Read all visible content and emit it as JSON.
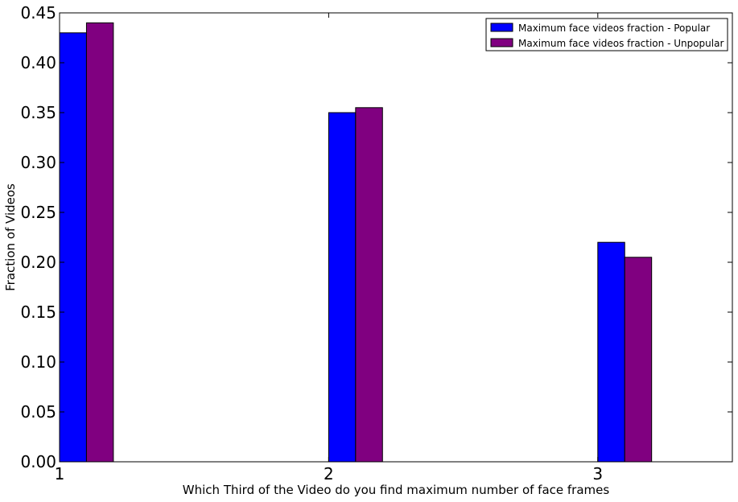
{
  "chart_data": {
    "type": "bar",
    "categories": [
      "1",
      "2",
      "3"
    ],
    "x": [
      1,
      2,
      3
    ],
    "series": [
      {
        "name": "Maximum face videos fraction - Popular",
        "color": "#0000ff",
        "values": [
          0.43,
          0.35,
          0.22
        ]
      },
      {
        "name": "Maximum face videos fraction - Unpopular",
        "color": "#800080",
        "values": [
          0.44,
          0.355,
          0.205
        ]
      }
    ],
    "title": "",
    "xlabel": "Which Third of the Video do you find maximum number of face frames",
    "ylabel": "Fraction of Videos",
    "xlim": [
      1,
      3.5
    ],
    "ylim": [
      0,
      0.45
    ],
    "xticks": [
      "1",
      "2",
      "3"
    ],
    "yticks": [
      "0.00",
      "0.05",
      "0.10",
      "0.15",
      "0.20",
      "0.25",
      "0.30",
      "0.35",
      "0.40",
      "0.45"
    ],
    "grid": false,
    "legend_position": "top-right"
  }
}
